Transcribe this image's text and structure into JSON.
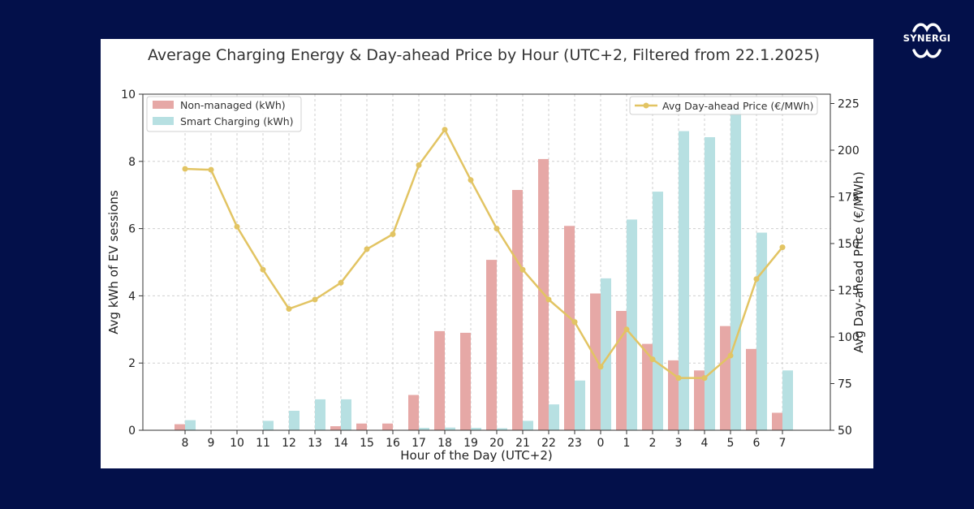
{
  "brand": {
    "name": "SYNERGI"
  },
  "chart_data": {
    "type": "bar",
    "title": "Average Charging Energy & Day-ahead Price by Hour (UTC+2, Filtered from 22.1.2025)",
    "xlabel": "Hour of the Day (UTC+2)",
    "ylabel": "Avg kWh of EV sessions",
    "y2label": "Avg Day-ahead Price (€/MWh)",
    "categories": [
      "8",
      "9",
      "10",
      "11",
      "12",
      "13",
      "14",
      "15",
      "16",
      "17",
      "18",
      "19",
      "20",
      "21",
      "22",
      "23",
      "0",
      "1",
      "2",
      "3",
      "4",
      "5",
      "6",
      "7"
    ],
    "ylim": [
      0,
      10
    ],
    "yticks": [
      0,
      2,
      4,
      6,
      8,
      10
    ],
    "y2lim": [
      50,
      230
    ],
    "y2ticks": [
      50,
      75,
      100,
      125,
      150,
      175,
      200,
      225
    ],
    "grid": true,
    "legend_left_position": "top-left",
    "legend_right_position": "top-right",
    "series": [
      {
        "name": "Non-managed (kWh)",
        "axis": "left",
        "kind": "bar",
        "color": "#e6a8a6",
        "values": [
          0.18,
          0,
          0,
          0,
          0,
          0,
          0.12,
          0.2,
          0.2,
          1.05,
          2.95,
          2.9,
          5.07,
          7.15,
          8.07,
          6.08,
          4.07,
          3.55,
          2.57,
          2.08,
          1.78,
          3.1,
          2.42,
          0.52
        ]
      },
      {
        "name": "Smart Charging (kWh)",
        "axis": "left",
        "kind": "bar",
        "color": "#b7e0e2",
        "values": [
          0.3,
          0,
          0,
          0.28,
          0.58,
          0.92,
          0.92,
          0,
          0,
          0.07,
          0.08,
          0.07,
          0.06,
          0.28,
          0.77,
          1.48,
          4.52,
          6.27,
          7.1,
          8.9,
          8.72,
          9.6,
          5.88,
          1.78
        ]
      },
      {
        "name": "Avg Day-ahead Price (€/MWh)",
        "axis": "right",
        "kind": "line",
        "color": "#e2c463",
        "values": [
          190,
          189.5,
          159,
          136,
          115,
          120,
          129,
          147,
          155,
          192,
          211,
          184,
          158,
          136,
          120,
          108,
          84,
          104,
          88,
          78,
          78,
          90,
          131,
          148
        ]
      }
    ]
  }
}
